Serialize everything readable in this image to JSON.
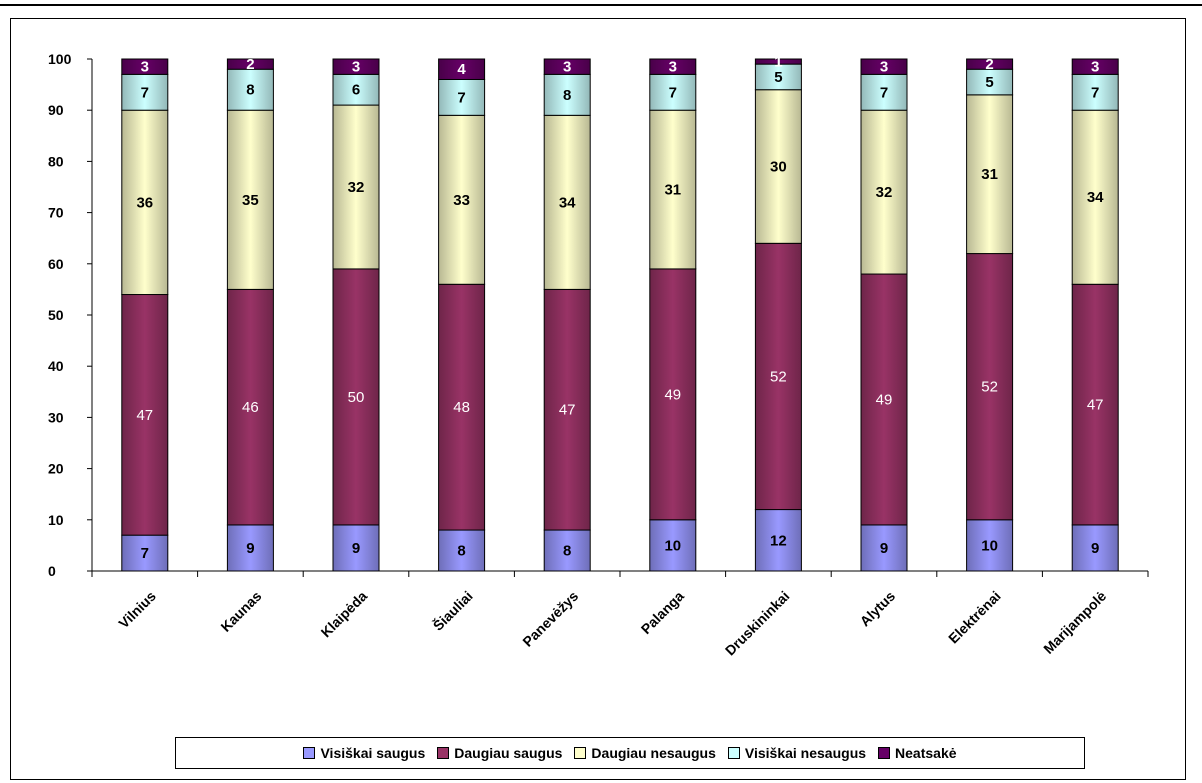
{
  "chart_data": {
    "type": "bar",
    "stacked": true,
    "title": "",
    "xlabel": "",
    "ylabel": "",
    "ylim": [
      0,
      100
    ],
    "yticks": [
      0,
      10,
      20,
      30,
      40,
      50,
      60,
      70,
      80,
      90,
      100
    ],
    "grid": false,
    "legend_position": "bottom",
    "categories": [
      "Vilnius",
      "Kaunas",
      "Klaipėda",
      "Šiauliai",
      "Panevėžys",
      "Palanga",
      "Druskininkai",
      "Alytus",
      "Elektrėnai",
      "Marijampolė"
    ],
    "series": [
      {
        "name": "Visiškai saugus",
        "color": "#9999ff",
        "label_color": "#000000",
        "values": [
          7,
          9,
          9,
          8,
          8,
          10,
          12,
          9,
          10,
          9
        ]
      },
      {
        "name": "Daugiau saugus",
        "color": "#993366",
        "label_color": "#ffffff",
        "values": [
          47,
          46,
          50,
          48,
          47,
          49,
          52,
          49,
          52,
          47
        ]
      },
      {
        "name": "Daugiau nesaugus",
        "color": "#ffffcc",
        "label_color": "#000000",
        "values": [
          36,
          35,
          32,
          33,
          34,
          31,
          30,
          32,
          31,
          34
        ]
      },
      {
        "name": "Visiškai nesaugus",
        "color": "#ccffff",
        "label_color": "#000000",
        "values": [
          7,
          8,
          6,
          7,
          8,
          7,
          5,
          7,
          5,
          7
        ]
      },
      {
        "name": "Neatsakė",
        "color": "#660066",
        "label_color": "#ffffff",
        "values": [
          3,
          2,
          3,
          4,
          3,
          3,
          1,
          3,
          2,
          3
        ]
      }
    ]
  }
}
